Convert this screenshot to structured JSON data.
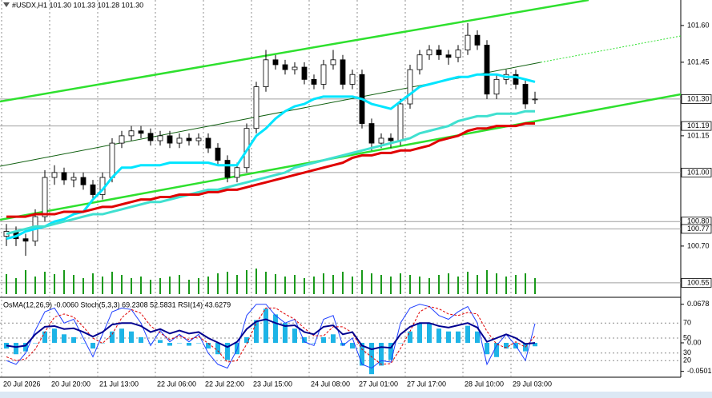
{
  "chart_data": [
    {
      "type": "candlestick",
      "title": "#USDX,H1  101.30 101.33 101.28 101.30",
      "categories": [
        "20 Jul 2026",
        null,
        null,
        null,
        null,
        "20 Jul 20:00",
        null,
        null,
        null,
        null,
        "21 Jul 13:00",
        null,
        null,
        null,
        null,
        null,
        "22 Jul 06:00",
        null,
        null,
        null,
        null,
        "22 Jul 22:00",
        null,
        null,
        null,
        null,
        "23 Jul 15:00",
        null,
        null,
        null,
        null,
        null,
        "24 Jul 08:00",
        null,
        null,
        null,
        null,
        "27 Jul 01:00",
        null,
        null,
        null,
        null,
        "27 Jul 17:00",
        null,
        null,
        null,
        null,
        null,
        "28 Jul 10:00",
        null,
        null,
        null,
        null,
        "29 Jul 03:00",
        null,
        null
      ],
      "ohlc": [
        [
          100.74,
          100.79,
          100.7,
          100.76
        ],
        [
          100.76,
          100.78,
          100.7,
          100.73
        ],
        [
          100.73,
          100.75,
          100.66,
          100.72
        ],
        [
          100.72,
          100.85,
          100.7,
          100.82
        ],
        [
          100.82,
          101.01,
          100.8,
          100.98
        ],
        [
          100.98,
          101.03,
          100.95,
          101.0
        ],
        [
          101.0,
          101.02,
          100.95,
          100.97
        ],
        [
          100.97,
          101.0,
          100.94,
          100.98
        ],
        [
          100.98,
          101.0,
          100.93,
          100.95
        ],
        [
          100.95,
          100.97,
          100.89,
          100.91
        ],
        [
          100.91,
          101.0,
          100.89,
          100.98
        ],
        [
          100.98,
          101.14,
          100.96,
          101.12
        ],
        [
          101.12,
          101.17,
          101.1,
          101.15
        ],
        [
          101.15,
          101.19,
          101.13,
          101.17
        ],
        [
          101.17,
          101.19,
          101.14,
          101.16
        ],
        [
          101.16,
          101.18,
          101.11,
          101.13
        ],
        [
          101.13,
          101.17,
          101.11,
          101.15
        ],
        [
          101.15,
          101.17,
          101.1,
          101.12
        ],
        [
          101.12,
          101.16,
          101.1,
          101.14
        ],
        [
          101.14,
          101.16,
          101.11,
          101.13
        ],
        [
          101.13,
          101.16,
          101.11,
          101.14
        ],
        [
          101.14,
          101.16,
          101.08,
          101.1
        ],
        [
          101.1,
          101.12,
          101.03,
          101.05
        ],
        [
          101.05,
          101.07,
          100.96,
          100.98
        ],
        [
          100.98,
          101.04,
          100.96,
          101.02
        ],
        [
          101.02,
          101.2,
          101.0,
          101.18
        ],
        [
          101.18,
          101.37,
          101.16,
          101.35
        ],
        [
          101.35,
          101.5,
          101.33,
          101.46
        ],
        [
          101.46,
          101.48,
          101.42,
          101.44
        ],
        [
          101.44,
          101.46,
          101.4,
          101.42
        ],
        [
          101.42,
          101.45,
          101.4,
          101.43
        ],
        [
          101.43,
          101.45,
          101.36,
          101.38
        ],
        [
          101.38,
          101.4,
          101.34,
          101.36
        ],
        [
          101.36,
          101.46,
          101.34,
          101.44
        ],
        [
          101.44,
          101.5,
          101.42,
          101.46
        ],
        [
          101.46,
          101.48,
          101.34,
          101.36
        ],
        [
          101.36,
          101.42,
          101.34,
          101.4
        ],
        [
          101.4,
          101.42,
          101.18,
          101.2
        ],
        [
          101.2,
          101.22,
          101.09,
          101.12
        ],
        [
          101.12,
          101.16,
          101.1,
          101.14
        ],
        [
          101.14,
          101.16,
          101.1,
          101.13
        ],
        [
          101.13,
          101.3,
          101.11,
          101.28
        ],
        [
          101.28,
          101.44,
          101.26,
          101.42
        ],
        [
          101.42,
          101.5,
          101.4,
          101.48
        ],
        [
          101.48,
          101.52,
          101.46,
          101.5
        ],
        [
          101.5,
          101.52,
          101.46,
          101.48
        ],
        [
          101.48,
          101.5,
          101.44,
          101.47
        ],
        [
          101.47,
          101.52,
          101.45,
          101.5
        ],
        [
          101.5,
          101.61,
          101.48,
          101.56
        ],
        [
          101.56,
          101.58,
          101.5,
          101.52
        ],
        [
          101.52,
          101.54,
          101.3,
          101.32
        ],
        [
          101.32,
          101.4,
          101.3,
          101.38
        ],
        [
          101.38,
          101.42,
          101.36,
          101.4
        ],
        [
          101.4,
          101.42,
          101.34,
          101.36
        ],
        [
          101.36,
          101.38,
          101.26,
          101.28
        ],
        [
          101.3,
          101.33,
          101.28,
          101.3
        ]
      ],
      "lines": [
        {
          "color": "#00e5ff",
          "values": [
            100.73,
            100.74,
            100.76,
            100.77,
            100.78,
            100.8,
            100.81,
            100.83,
            100.84,
            100.89,
            100.93,
            100.98,
            101.02,
            101.02,
            101.03,
            101.03,
            101.03,
            101.04,
            101.04,
            101.04,
            101.04,
            101.04,
            101.03,
            101.03,
            101.03,
            101.09,
            101.15,
            101.18,
            101.22,
            101.25,
            101.27,
            101.28,
            101.3,
            101.31,
            101.31,
            101.31,
            101.31,
            101.3,
            101.28,
            101.27,
            101.26,
            101.29,
            101.32,
            101.35,
            101.36,
            101.37,
            101.38,
            101.39,
            101.39,
            101.4,
            101.4,
            101.4,
            101.39,
            101.39,
            101.38,
            101.37
          ]
        },
        {
          "color": "#40e0d0",
          "values": [
            100.75,
            100.76,
            100.77,
            100.78,
            100.78,
            100.79,
            100.8,
            100.81,
            100.82,
            100.83,
            100.83,
            100.84,
            100.85,
            100.86,
            100.87,
            100.88,
            100.88,
            100.89,
            100.9,
            100.91,
            100.92,
            100.93,
            100.93,
            100.94,
            100.95,
            100.96,
            100.97,
            100.98,
            100.99,
            101.0,
            101.02,
            101.03,
            101.04,
            101.05,
            101.06,
            101.07,
            101.08,
            101.09,
            101.1,
            101.11,
            101.12,
            101.13,
            101.14,
            101.16,
            101.17,
            101.18,
            101.19,
            101.21,
            101.22,
            101.23,
            101.23,
            101.24,
            101.24,
            101.24,
            101.25,
            101.25
          ]
        },
        {
          "color": "#e00000",
          "values": [
            100.82,
            100.82,
            100.82,
            100.83,
            100.83,
            100.83,
            100.84,
            100.84,
            100.84,
            100.85,
            100.86,
            100.86,
            100.87,
            100.88,
            100.89,
            100.89,
            100.9,
            100.9,
            100.91,
            100.91,
            100.91,
            100.92,
            100.92,
            100.93,
            100.93,
            100.94,
            100.95,
            100.96,
            100.97,
            100.98,
            100.99,
            101.0,
            101.01,
            101.02,
            101.03,
            101.04,
            101.06,
            101.07,
            101.07,
            101.08,
            101.08,
            101.09,
            101.09,
            101.1,
            101.11,
            101.13,
            101.14,
            101.15,
            101.17,
            101.18,
            101.18,
            101.19,
            101.19,
            101.19,
            101.2,
            101.2
          ]
        }
      ],
      "volumes": [
        25,
        20,
        30,
        22,
        28,
        25,
        30,
        24,
        20,
        26,
        22,
        28,
        24,
        20,
        22,
        18,
        20,
        22,
        24,
        18,
        20,
        22,
        26,
        28,
        24,
        30,
        32,
        28,
        25,
        22,
        24,
        20,
        22,
        26,
        24,
        28,
        22,
        30,
        26,
        24,
        22,
        26,
        24,
        22,
        20,
        24,
        26,
        22,
        28,
        24,
        30,
        26,
        22,
        24,
        26,
        20
      ],
      "volume_color": "#1a9a1a",
      "ylim": [
        100.504,
        101.704
      ],
      "yticks": [
        {
          "value": 101.6,
          "label": "101.60"
        },
        {
          "value": 101.45,
          "label": "101.45"
        },
        {
          "value": 101.15,
          "label": "101.15"
        },
        {
          "value": 100.7,
          "label": "100.70"
        }
      ],
      "levels": [
        {
          "value": 101.3,
          "label": "101.30"
        },
        {
          "value": 101.19,
          "label": "101.19"
        },
        {
          "value": 101.0,
          "label": "101.00"
        },
        {
          "value": 100.8,
          "label": "100.80"
        },
        {
          "value": 100.77,
          "label": "100.77"
        },
        {
          "value": 100.55,
          "label": "100.55"
        }
      ],
      "grid": true
    },
    {
      "type": "oscillator",
      "title": "OsMA(12,26,9) -0.0060  Stoch(5,3,3) 69.2308 52.5831  RSI(14) 43.6279",
      "histogram": {
        "color": "#1eb4e6",
        "values": [
          -0.01,
          -0.02,
          -0.015,
          0,
          0.02,
          0.025,
          0.015,
          0.01,
          0,
          -0.01,
          0,
          0.02,
          0.025,
          0.02,
          0.01,
          0,
          0.005,
          -0.005,
          0,
          -0.005,
          0,
          -0.01,
          -0.02,
          -0.03,
          -0.02,
          0.01,
          0.04,
          0.06,
          0.05,
          0.035,
          0.025,
          0.01,
          0,
          0.01,
          0.015,
          -0.005,
          -0.01,
          -0.04,
          -0.055,
          -0.04,
          -0.03,
          0,
          0.02,
          0.035,
          0.035,
          0.025,
          0.02,
          0.02,
          0.03,
          0.02,
          -0.02,
          -0.025,
          -0.01,
          -0.01,
          -0.015,
          -0.006
        ]
      },
      "lines": [
        {
          "color": "#2040ff",
          "axis": "y2",
          "width": 1,
          "values": [
            20,
            15,
            30,
            60,
            85,
            90,
            70,
            75,
            50,
            25,
            55,
            85,
            90,
            88,
            70,
            40,
            60,
            45,
            55,
            45,
            55,
            30,
            15,
            10,
            35,
            80,
            95,
            95,
            80,
            70,
            75,
            45,
            40,
            75,
            80,
            40,
            50,
            15,
            10,
            20,
            18,
            70,
            90,
            95,
            92,
            80,
            75,
            85,
            92,
            70,
            15,
            40,
            55,
            40,
            20,
            69.2308
          ]
        },
        {
          "color": "#e00000",
          "axis": "y2",
          "width": 1,
          "dashed": true,
          "values": [
            25,
            20,
            22,
            35,
            58,
            78,
            82,
            78,
            65,
            50,
            43,
            55,
            77,
            88,
            83,
            66,
            57,
            48,
            53,
            48,
            52,
            43,
            33,
            18,
            20,
            42,
            70,
            90,
            90,
            82,
            75,
            63,
            53,
            53,
            65,
            65,
            57,
            35,
            25,
            15,
            16,
            36,
            59,
            85,
            92,
            89,
            82,
            80,
            84,
            82,
            59,
            42,
            37,
            45,
            38,
            52.5831
          ]
        },
        {
          "color": "#000090",
          "axis": "y2",
          "width": 2,
          "values": [
            40,
            38,
            40,
            55,
            65,
            66,
            62,
            63,
            58,
            52,
            58,
            68,
            70,
            70,
            66,
            58,
            62,
            56,
            60,
            56,
            58,
            50,
            44,
            38,
            45,
            62,
            72,
            75,
            70,
            66,
            67,
            58,
            55,
            65,
            67,
            55,
            58,
            40,
            35,
            38,
            37,
            55,
            65,
            70,
            70,
            66,
            64,
            67,
            70,
            64,
            45,
            50,
            55,
            50,
            42,
            43.6279
          ]
        }
      ],
      "ylim": [
        -0.0576,
        0.0744
      ],
      "yticks": [
        0.0678,
        {
          "value": 0,
          "label": "0.00"
        },
        -0.0501
      ],
      "y2lim": [
        0,
        100
      ],
      "y2ticks": [
        70,
        50,
        30,
        20
      ]
    }
  ]
}
